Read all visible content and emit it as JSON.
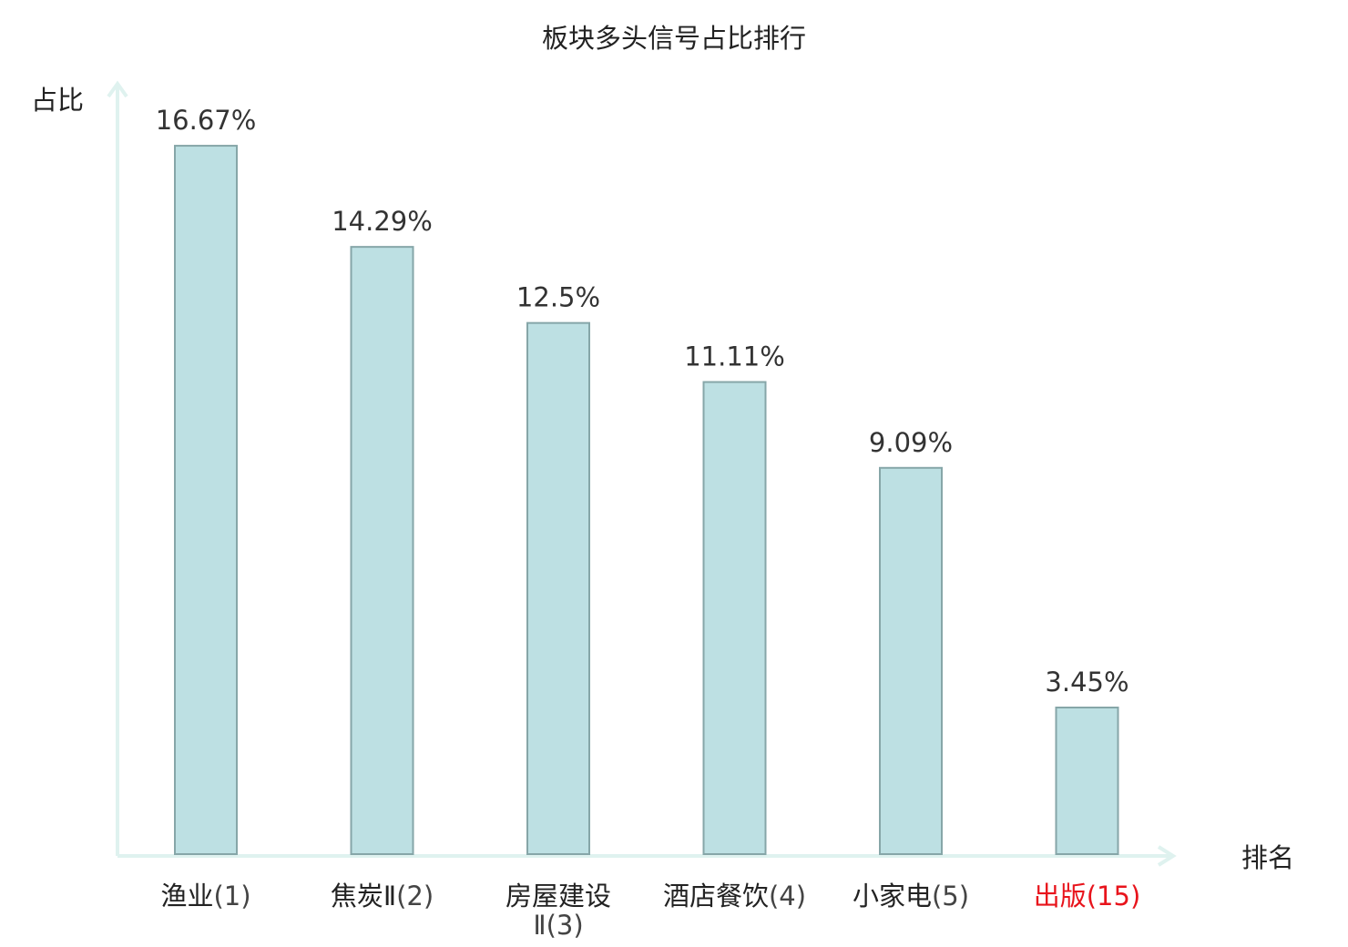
{
  "chart_data": {
    "type": "bar",
    "title": "板块多头信号占比排行",
    "ylabel": "占比",
    "xlabel": "排名",
    "categories": [
      {
        "name": "渔业",
        "rank": "(1)",
        "highlight": false
      },
      {
        "name": "焦炭Ⅱ",
        "rank": "(2)",
        "highlight": false
      },
      {
        "name": "房屋建设",
        "rank": "Ⅱ(3)",
        "highlight": false
      },
      {
        "name": "酒店餐饮",
        "rank": "(4)",
        "highlight": false
      },
      {
        "name": "小家电",
        "rank": "(5)",
        "highlight": false
      },
      {
        "name": "出版",
        "rank": "(15)",
        "highlight": true
      }
    ],
    "values": [
      16.67,
      14.29,
      12.5,
      11.11,
      9.09,
      3.45
    ],
    "value_labels": [
      "16.67%",
      "14.29%",
      "12.5%",
      "11.11%",
      "9.09%",
      "3.45%"
    ],
    "ylim": [
      0,
      18
    ],
    "grid": false,
    "legend": "none"
  },
  "colors": {
    "bar_fill": "#bde0e3",
    "bar_stroke": "#86a6a8",
    "axis": "#dff2ef",
    "text": "#222222",
    "value_text": "#333333",
    "rank_text": "#444444",
    "highlight": "#e8141c"
  }
}
